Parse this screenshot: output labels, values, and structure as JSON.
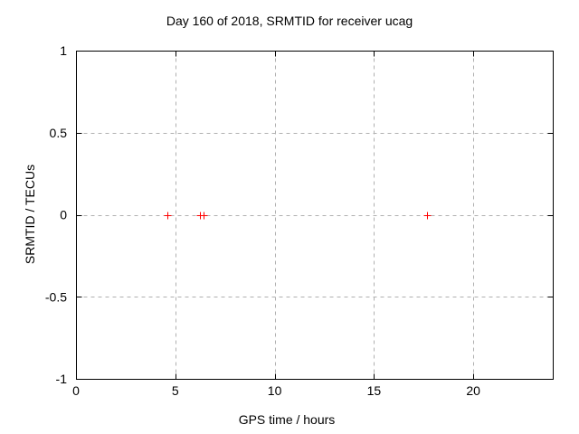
{
  "chart_data": {
    "type": "scatter",
    "title": "Day 160 of 2018, SRMTID for receiver ucag",
    "xlabel": "GPS time / hours",
    "ylabel": "SRMTID / TECUs",
    "xlim": [
      0,
      24
    ],
    "ylim": [
      -1,
      1
    ],
    "x_ticks": {
      "values": [
        0,
        5,
        10,
        15,
        20
      ],
      "labels": [
        "0",
        "5",
        "10",
        "15",
        "20"
      ]
    },
    "y_ticks": {
      "values": [
        -1,
        -0.5,
        0,
        0.5,
        1
      ],
      "labels": [
        "-1",
        "-0.5",
        "0",
        "0.5",
        "1"
      ]
    },
    "grid": "dashed-gray-at-major-ticks",
    "legend": "none",
    "marker": "plus",
    "series": [
      {
        "name": "SRMTID",
        "points": [
          {
            "x": 4.6,
            "y": 0.0
          },
          {
            "x": 6.26,
            "y": 0.0
          },
          {
            "x": 6.4,
            "y": 0.0
          },
          {
            "x": 17.65,
            "y": 0.0
          }
        ]
      }
    ],
    "colors": {
      "point": "#ff0000",
      "grid": "#b0b0b0",
      "axis": "#000000",
      "text": "#000000",
      "background": "#ffffff"
    }
  }
}
